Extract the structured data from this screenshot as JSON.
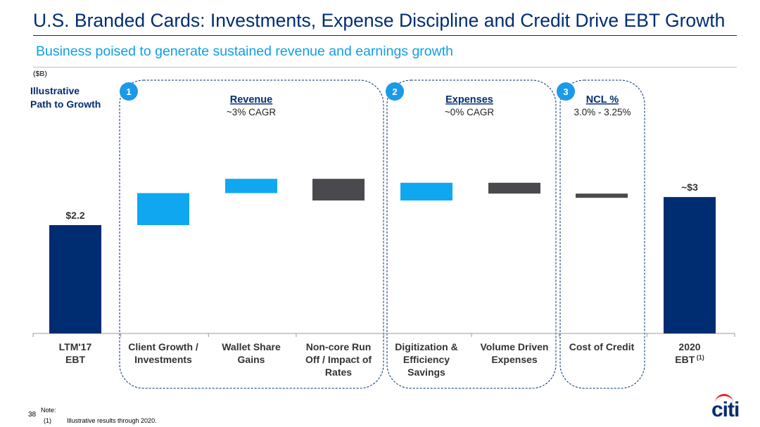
{
  "page": {
    "title": "U.S. Branded Cards: Investments, Expense Discipline and Credit Drive EBT Growth",
    "subtitle": "Business poised to generate sustained revenue and earnings growth",
    "unit": "($B)",
    "side_label": "Illustrative\nPath to Growth",
    "page_number": "38",
    "note_label": "Note:",
    "note_mark": "(1)",
    "note_text": "Illustrative results through 2020.",
    "logo": "citi"
  },
  "colors": {
    "navy": "#002D72",
    "light_blue": "#0FA8F0",
    "dark_gray": "#4A4A4E",
    "accent_blue": "#1A9AE8",
    "logo_red": "#E8232A"
  },
  "groups": [
    {
      "badge": "1",
      "heading": "Revenue",
      "sub": "~3% CAGR"
    },
    {
      "badge": "2",
      "heading": "Expenses",
      "sub": "~0% CAGR"
    },
    {
      "badge": "3",
      "heading": "NCL %",
      "sub": "3.0% - 3.25%"
    }
  ],
  "chart_data": {
    "type": "bar",
    "subtype": "waterfall",
    "categories": [
      "LTM'17\nEBT",
      "Client Growth /\nInvestments",
      "Wallet Share\nGains",
      "Non-core Run\nOff / Impact of\nRates",
      "Digitization &\nEfficiency\nSavings",
      "Volume Driven\nExpenses",
      "Cost of Credit",
      "2020\nEBT"
    ],
    "category_superscripts": [
      "",
      "",
      "",
      "",
      "",
      "",
      "",
      "(1)"
    ],
    "bars": [
      {
        "kind": "total",
        "start": 0,
        "end": 2.2,
        "color": "navy",
        "label": "$2.2"
      },
      {
        "kind": "increase",
        "start": 2.2,
        "end": 2.85,
        "color": "light_blue",
        "label": ""
      },
      {
        "kind": "increase",
        "start": 2.85,
        "end": 3.14,
        "color": "light_blue",
        "label": ""
      },
      {
        "kind": "decrease",
        "start": 3.14,
        "end": 2.7,
        "color": "dark_gray",
        "label": ""
      },
      {
        "kind": "increase",
        "start": 2.7,
        "end": 3.06,
        "color": "light_blue",
        "label": ""
      },
      {
        "kind": "decrease",
        "start": 3.06,
        "end": 2.84,
        "color": "dark_gray",
        "label": ""
      },
      {
        "kind": "decrease",
        "start": 2.84,
        "end": 2.77,
        "color": "dark_gray",
        "label": ""
      },
      {
        "kind": "total",
        "start": 0,
        "end": 2.77,
        "color": "navy",
        "label": "~$3"
      }
    ],
    "ylim": [
      0,
      4.0
    ],
    "grid": false,
    "legend": "none",
    "title": "",
    "xlabel": "",
    "ylabel": ""
  }
}
